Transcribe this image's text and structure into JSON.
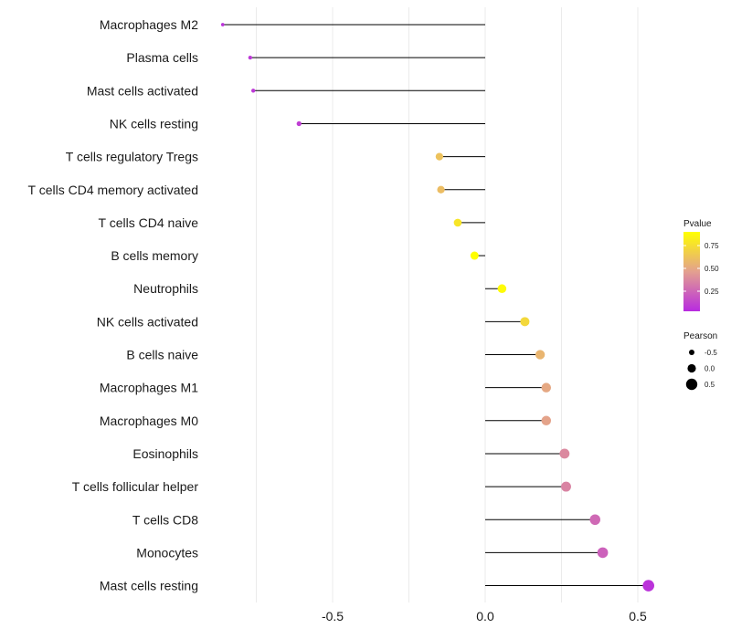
{
  "chart_data": {
    "type": "lollipop",
    "categories": [
      "Macrophages M2",
      "Plasma cells",
      "Mast cells activated",
      "NK cells resting",
      "T cells regulatory  Tregs",
      "T cells CD4 memory activated",
      "T cells CD4 naive",
      "B cells memory",
      "Neutrophils",
      "NK cells activated",
      "B cells naive",
      "Macrophages M1",
      "Macrophages M0",
      "Eosinophils",
      "T cells follicular helper",
      "T cells CD8",
      "Monocytes",
      "Mast cells resting"
    ],
    "values": [
      -0.86,
      -0.77,
      -0.76,
      -0.61,
      -0.15,
      -0.145,
      -0.09,
      -0.035,
      0.055,
      0.13,
      0.18,
      0.2,
      0.2,
      0.26,
      0.265,
      0.36,
      0.385,
      0.535
    ],
    "pvalues": [
      0.06,
      0.08,
      0.08,
      0.1,
      0.62,
      0.6,
      0.78,
      0.9,
      0.88,
      0.72,
      0.56,
      0.5,
      0.48,
      0.38,
      0.36,
      0.26,
      0.23,
      0.06
    ],
    "xlim": [
      -1.0,
      0.65
    ],
    "xticks": [
      "-0.5",
      "0.0",
      "0.5"
    ],
    "xtick_values": [
      -0.5,
      0.0,
      0.5
    ],
    "xlabel": "",
    "ylabel": "",
    "legend": {
      "color_title": "Pvalue",
      "color_ticks": [
        "0.75",
        "0.50",
        "0.25"
      ],
      "color_tick_values": [
        0.75,
        0.5,
        0.25
      ],
      "color_range": [
        0.03,
        0.9
      ],
      "size_title": "Pearson",
      "size_ticks": [
        "-0.5",
        "0.0",
        "0.5"
      ],
      "size_tick_values": [
        -0.5,
        0.0,
        0.5
      ],
      "placement": "right"
    },
    "colors": {
      "low": "#b82be0",
      "mid": "#e3a08f",
      "high": "#ffff00",
      "grid": "#ebebeb",
      "stem": "#000000"
    }
  }
}
